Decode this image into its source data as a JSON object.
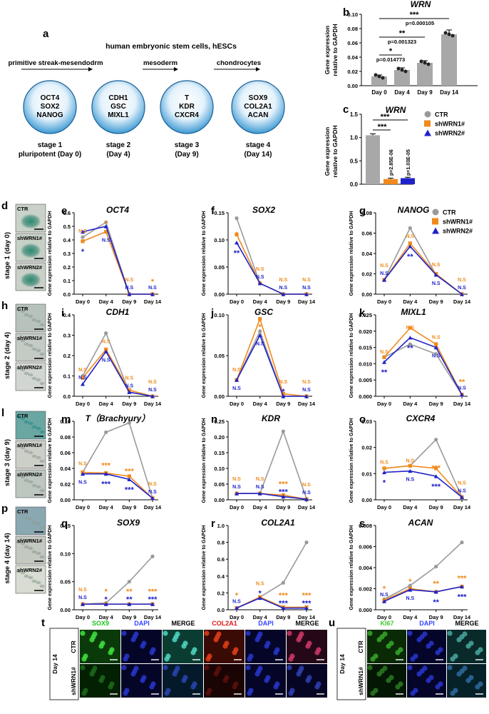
{
  "colors": {
    "ctr": "#9a9a9a",
    "sh1": "#f08a1c",
    "sh2": "#1f22c8",
    "circle_fill": "#4aa6d8",
    "circle_edge": "#1c5f98",
    "bar_fill": "#a8a8a8",
    "green": "#1cc51c",
    "red": "#e01414",
    "blue": "#3344ff",
    "ki67": "#41c82f"
  },
  "panel_a": {
    "letter": "a",
    "title": "human embryonic stem cells, hESCs",
    "arrows": [
      "primitive streak-mesendodrm",
      "mesoderm",
      "chondrocytes"
    ],
    "stages": [
      {
        "markers": [
          "OCT4",
          "SOX2",
          "NANOG"
        ],
        "label1": "stage 1",
        "label2": "pluripotent (Day 0)"
      },
      {
        "markers": [
          "CDH1",
          "GSC",
          "MIXL1"
        ],
        "label1": "stage 2",
        "label2": "(Day 4)"
      },
      {
        "markers": [
          "T",
          "KDR",
          "CXCR4"
        ],
        "label1": "stage 3",
        "label2": "(Day 9)"
      },
      {
        "markers": [
          "SOX9",
          "COL2A1",
          "ACAN"
        ],
        "label1": "stage 4",
        "label2": "(Day 14)"
      }
    ]
  },
  "ylabel_text": "Gene expression",
  "ylabel_text2": "relative to GAPDH",
  "ylabel_line": "Gene expression relative to GAPDH",
  "legend": [
    "CTR",
    "shWRN1#",
    "shWRN2#"
  ],
  "micro": {
    "stages": [
      "stage 1 (day 0)",
      "stage 2 (day 4)",
      "stage 3 (day 9)",
      "stage 4 (day 14)"
    ],
    "labels": [
      "CTR",
      "shWRN1#",
      "shWRN2#"
    ],
    "letters": [
      "d",
      "h",
      "l",
      "p"
    ]
  },
  "chart_data": [
    {
      "id": "b",
      "type": "bar",
      "title": "WRN",
      "categories": [
        "Day 0",
        "Day 4",
        "Day 9",
        "Day 14"
      ],
      "values": [
        0.013,
        0.022,
        0.032,
        0.072
      ],
      "errors": [
        0.002,
        0.003,
        0.003,
        0.006
      ],
      "ylim": [
        0,
        0.1
      ],
      "yticks": [
        "0.00",
        "0.02",
        "0.04",
        "0.06",
        "0.08",
        "0.10"
      ],
      "ylabel": "Gene expression relative to GAPDH",
      "annotations": [
        {
          "text": "***",
          "p": "p=0.000105"
        },
        {
          "text": "**",
          "p": "p=0.001323"
        },
        {
          "text": "*",
          "p": "p=0.014773"
        }
      ]
    },
    {
      "id": "c",
      "type": "bar",
      "title": "WRN",
      "categories": [
        "CTR",
        "shWRN1#",
        "shWRN2#"
      ],
      "values": [
        1.05,
        0.11,
        0.13
      ],
      "errors": [
        0.03,
        0.02,
        0.02
      ],
      "ylim": [
        0,
        1.5
      ],
      "yticks": [
        "0.0",
        "0.5",
        "1.0",
        "1.5"
      ],
      "ylabel": "Gene expression relative to GAPDH",
      "annotations": [
        {
          "text": "***"
        },
        {
          "text": "***"
        }
      ],
      "pvalues": [
        "p=2.85E-06",
        "p=1.03E-05"
      ]
    },
    {
      "id": "e",
      "type": "line",
      "title": "OCT4",
      "x": [
        "Day 0",
        "Day 4",
        "Day 9",
        "Day 14"
      ],
      "ylim": [
        0,
        0.6
      ],
      "yticks": [
        "0.0",
        "0.1",
        "0.2",
        "0.3",
        "0.4",
        "0.5",
        "0.6"
      ],
      "series": [
        {
          "name": "CTR",
          "values": [
            0.42,
            0.53,
            0.0,
            0.0
          ]
        },
        {
          "name": "shWRN1#",
          "values": [
            0.39,
            0.46,
            0.0,
            0.0
          ]
        },
        {
          "name": "shWRN2#",
          "values": [
            0.46,
            0.5,
            0.0,
            0.0
          ]
        }
      ],
      "sig": [
        [
          "N.S",
          "*",
          "N.S",
          "*"
        ],
        [
          "*",
          "N.S",
          "N.S",
          "N.S"
        ]
      ]
    },
    {
      "id": "f",
      "type": "line",
      "title": "SOX2",
      "x": [
        "Day 0",
        "Day 4",
        "Day 9",
        "Day 14"
      ],
      "ylim": [
        0,
        0.15
      ],
      "yticks": [
        "0.00",
        "0.05",
        "0.10",
        "0.15"
      ],
      "series": [
        {
          "name": "CTR",
          "values": [
            0.14,
            0.02,
            0.0,
            0.0
          ]
        },
        {
          "name": "shWRN1#",
          "values": [
            0.11,
            0.02,
            0.0,
            0.0
          ]
        },
        {
          "name": "shWRN2#",
          "values": [
            0.095,
            0.02,
            0.0,
            0.0
          ]
        }
      ],
      "sig": [
        [
          "*",
          "N.S",
          "N.S",
          "N.S"
        ],
        [
          "**",
          "N.S",
          "N.S",
          "N.S"
        ]
      ]
    },
    {
      "id": "g",
      "type": "line",
      "title": "NANOG",
      "x": [
        "Day 0",
        "Day 4",
        "Day 9",
        "Day 14"
      ],
      "ylim": [
        0,
        0.08
      ],
      "yticks": [
        "0.00",
        "0.02",
        "0.04",
        "0.06",
        "0.08"
      ],
      "series": [
        {
          "name": "CTR",
          "values": [
            0.014,
            0.065,
            0.019,
            0.0
          ]
        },
        {
          "name": "shWRN1#",
          "values": [
            0.014,
            0.05,
            0.02,
            0.0
          ]
        },
        {
          "name": "shWRN2#",
          "values": [
            0.014,
            0.047,
            0.019,
            0.0
          ]
        }
      ],
      "sig": [
        [
          "N.S",
          "N.S",
          "N.S",
          "N.S"
        ],
        [
          "N.S",
          "**",
          "N.S",
          "N.S"
        ]
      ]
    },
    {
      "id": "i",
      "type": "line",
      "title": "CDH1",
      "x": [
        "Day 0",
        "Day 4",
        "Day 9",
        "Day 14"
      ],
      "ylim": [
        0,
        0.4
      ],
      "yticks": [
        "0.0",
        "0.1",
        "0.2",
        "0.3",
        "0.4"
      ],
      "series": [
        {
          "name": "CTR",
          "values": [
            0.1,
            0.31,
            0.02,
            0.0
          ]
        },
        {
          "name": "shWRN1#",
          "values": [
            0.09,
            0.23,
            0.03,
            0.0
          ]
        },
        {
          "name": "shWRN2#",
          "values": [
            0.06,
            0.22,
            0.02,
            0.0
          ]
        }
      ],
      "sig": [
        [
          "N.S",
          "N.S",
          "N.S",
          "N.S"
        ],
        [
          "N.S",
          "N.S",
          "N.S",
          "N.S"
        ]
      ]
    },
    {
      "id": "j",
      "type": "line",
      "title": "GSC",
      "x": [
        "Day 0",
        "Day 4",
        "Day 9",
        "Day 14"
      ],
      "ylim": [
        0,
        0.1
      ],
      "yticks": [
        "0.00",
        "0.05",
        "0.10"
      ],
      "series": [
        {
          "name": "CTR",
          "values": [
            0.02,
            0.08,
            0.0,
            0.0
          ]
        },
        {
          "name": "shWRN1#",
          "values": [
            0.02,
            0.095,
            0.003,
            0.0
          ]
        },
        {
          "name": "shWRN2#",
          "values": [
            0.02,
            0.075,
            0.0,
            0.0
          ]
        }
      ],
      "sig": [
        [
          "N.S",
          "*",
          "N.S",
          "N.S"
        ],
        [
          "N.S",
          "N.S",
          "*",
          "N.S"
        ]
      ]
    },
    {
      "id": "k",
      "type": "line",
      "title": "MIXL1",
      "x": [
        "Day 0",
        "Day 4",
        "Day 9",
        "Day 14"
      ],
      "ylim": [
        0,
        0.025
      ],
      "yticks": [
        "0.000",
        "0.005",
        "0.010",
        "0.015",
        "0.020",
        "0.025"
      ],
      "series": [
        {
          "name": "CTR",
          "values": [
            0.012,
            0.016,
            0.013,
            0.0005
          ]
        },
        {
          "name": "shWRN1#",
          "values": [
            0.012,
            0.021,
            0.016,
            0.0005
          ]
        },
        {
          "name": "shWRN2#",
          "values": [
            0.0105,
            0.018,
            0.015,
            0.0005
          ]
        }
      ],
      "sig": [
        [
          "N.S",
          "N.S",
          "N.S",
          "**"
        ],
        [
          "**",
          "**",
          "N.S",
          "N.S"
        ]
      ]
    },
    {
      "id": "m",
      "type": "line",
      "title": "T（Brachyury）",
      "x": [
        "Day 0",
        "Day 4",
        "Day 9",
        "Day 14"
      ],
      "ylim": [
        0,
        0.1
      ],
      "yticks": [
        "0.00",
        "0.02",
        "0.04",
        "0.06",
        "0.08",
        "0.10"
      ],
      "series": [
        {
          "name": "CTR",
          "values": [
            0.035,
            0.086,
            0.098,
            0.002
          ]
        },
        {
          "name": "shWRN1#",
          "values": [
            0.035,
            0.034,
            0.03,
            0.002
          ]
        },
        {
          "name": "shWRN2#",
          "values": [
            0.033,
            0.033,
            0.026,
            0.002
          ]
        }
      ],
      "sig": [
        [
          "N.S",
          "***",
          "***",
          "N.S"
        ],
        [
          "N.S",
          "***",
          "***",
          "N.S"
        ]
      ]
    },
    {
      "id": "n",
      "type": "line",
      "title": "KDR",
      "x": [
        "Day 0",
        "Day 4",
        "Day 9",
        "Day 14"
      ],
      "ylim": [
        0,
        0.25
      ],
      "yticks": [
        "0.00",
        "0.05",
        "0.10",
        "0.15",
        "0.20",
        "0.25"
      ],
      "series": [
        {
          "name": "CTR",
          "values": [
            0.02,
            0.02,
            0.218,
            0.003
          ]
        },
        {
          "name": "shWRN1#",
          "values": [
            0.02,
            0.02,
            0.015,
            0.002
          ]
        },
        {
          "name": "shWRN2#",
          "values": [
            0.02,
            0.02,
            0.01,
            0.002
          ]
        }
      ],
      "sig": [
        [
          "N.S",
          "N.S",
          "***",
          "N.S"
        ],
        [
          "N.S",
          "N.S",
          "***",
          "N.S"
        ]
      ]
    },
    {
      "id": "o",
      "type": "line",
      "title": "CXCR4",
      "x": [
        "Day 0",
        "Day 4",
        "Day 9",
        "Day 14"
      ],
      "ylim": [
        0,
        0.03
      ],
      "yticks": [
        "0.00",
        "0.01",
        "0.02",
        "0.03"
      ],
      "series": [
        {
          "name": "CTR",
          "values": [
            0.012,
            0.013,
            0.023,
            0.001
          ]
        },
        {
          "name": "shWRN1#",
          "values": [
            0.012,
            0.013,
            0.012,
            0.001
          ]
        },
        {
          "name": "shWRN2#",
          "values": [
            0.0105,
            0.011,
            0.009,
            0.001
          ]
        }
      ],
      "sig": [
        [
          "N.S",
          "N.S",
          "***",
          "N.S"
        ],
        [
          "*",
          "N.S",
          "***",
          "N.S"
        ]
      ]
    },
    {
      "id": "q",
      "type": "line",
      "title": "SOX9",
      "x": [
        "Day 0",
        "Day 4",
        "Day 9",
        "Day 14"
      ],
      "ylim": [
        0,
        0.15
      ],
      "yticks": [
        "0.00",
        "0.05",
        "0.10",
        "0.15"
      ],
      "series": [
        {
          "name": "CTR",
          "values": [
            0.01,
            0.012,
            0.05,
            0.095
          ]
        },
        {
          "name": "shWRN1#",
          "values": [
            0.01,
            0.01,
            0.01,
            0.01
          ]
        },
        {
          "name": "shWRN2#",
          "values": [
            0.01,
            0.01,
            0.01,
            0.01
          ]
        }
      ],
      "sig": [
        [
          "N.S",
          "*",
          "**",
          "***"
        ],
        [
          "N.S",
          "*",
          "**",
          "***"
        ]
      ]
    },
    {
      "id": "r",
      "type": "line",
      "title": "COL2A1",
      "x": [
        "Day 0",
        "Day 4",
        "Day 9",
        "Day 14"
      ],
      "ylim": [
        0,
        1.0
      ],
      "yticks": [
        "0.0",
        "0.2",
        "0.4",
        "0.6",
        "0.8",
        "1.0"
      ],
      "series": [
        {
          "name": "CTR",
          "values": [
            0.02,
            0.15,
            0.32,
            0.8
          ]
        },
        {
          "name": "shWRN1#",
          "values": [
            0.02,
            0.15,
            0.03,
            0.03
          ]
        },
        {
          "name": "shWRN2#",
          "values": [
            0.02,
            0.14,
            0.02,
            0.02
          ]
        }
      ],
      "sig": [
        [
          "*",
          "N.S",
          "***",
          "***"
        ],
        [
          "N.S",
          "*",
          "***",
          "***"
        ]
      ]
    },
    {
      "id": "s",
      "type": "line",
      "title": "ACAN",
      "x": [
        "Day 0",
        "Day 4",
        "Day 9",
        "Day 14"
      ],
      "ylim": [
        0,
        0.008
      ],
      "yticks": [
        "0.000",
        "0.002",
        "0.004",
        "0.006",
        "0.008"
      ],
      "series": [
        {
          "name": "CTR",
          "values": [
            0.001,
            0.0023,
            0.0041,
            0.0064
          ]
        },
        {
          "name": "shWRN1#",
          "values": [
            0.0009,
            0.002,
            0.0017,
            0.0022
          ]
        },
        {
          "name": "shWRN2#",
          "values": [
            0.0008,
            0.0019,
            0.0017,
            0.0022
          ]
        }
      ],
      "sig": [
        [
          "*",
          "*",
          "**",
          "***"
        ],
        [
          "N.S",
          "N.S",
          "**",
          "***"
        ]
      ]
    }
  ],
  "panel_t": {
    "letter": "t",
    "headers": [
      {
        "text": "SOX9",
        "color": "#1cc51c"
      },
      {
        "text": "DAPI",
        "color": "#3344ff"
      },
      {
        "text": "MERGE",
        "color": "#000000"
      },
      {
        "text": "COL2A1",
        "color": "#e01414"
      },
      {
        "text": "DAPI",
        "color": "#3344ff"
      },
      {
        "text": "MERGE",
        "color": "#000000"
      }
    ],
    "side": "Day 14",
    "rows": [
      "CTR",
      "shWRN1#"
    ]
  },
  "panel_u": {
    "letter": "u",
    "headers": [
      {
        "text": "KI67",
        "color": "#41c82f"
      },
      {
        "text": "DAPI",
        "color": "#3344ff"
      },
      {
        "text": "MERGE",
        "color": "#000000"
      }
    ],
    "side": "Day 14",
    "rows": [
      "CTR",
      "shWRN1#"
    ]
  }
}
